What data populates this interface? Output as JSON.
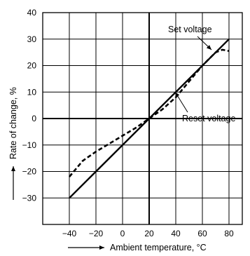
{
  "chart_data": {
    "type": "line",
    "xlabel": "Ambient temperature, °C",
    "ylabel": "Rate of change, %",
    "xlim": [
      -60,
      90
    ],
    "ylim": [
      -40,
      40
    ],
    "x_ticks": [
      -40,
      -20,
      0,
      20,
      40,
      60,
      80
    ],
    "y_ticks": [
      -30,
      -20,
      -10,
      0,
      10,
      20,
      30,
      40
    ],
    "x_tick_labels": [
      "−40",
      "−20",
      "0",
      "20",
      "40",
      "60",
      "80"
    ],
    "y_tick_labels": [
      "−30",
      "−20",
      "−10",
      "0",
      "10",
      "20",
      "30",
      "40"
    ],
    "grid": true,
    "series": [
      {
        "name": "Set voltage",
        "style": "solid",
        "x": [
          -40,
          80
        ],
        "y": [
          -30,
          30
        ]
      },
      {
        "name": "Reset voltage",
        "style": "dashed",
        "x": [
          -40,
          -30,
          -20,
          -10,
          0,
          10,
          20,
          30,
          40,
          50,
          60,
          70,
          75,
          80
        ],
        "y": [
          -22,
          -16,
          -12.5,
          -9.5,
          -6.5,
          -3.5,
          0,
          3.5,
          8,
          14,
          20,
          25,
          26,
          25.5
        ]
      }
    ],
    "annotations": [
      {
        "text": "Set voltage",
        "points_to_x": 60,
        "points_to_y": 20
      },
      {
        "text": "Reset voltage",
        "points_to_x": 45,
        "points_to_y": 10
      }
    ]
  }
}
